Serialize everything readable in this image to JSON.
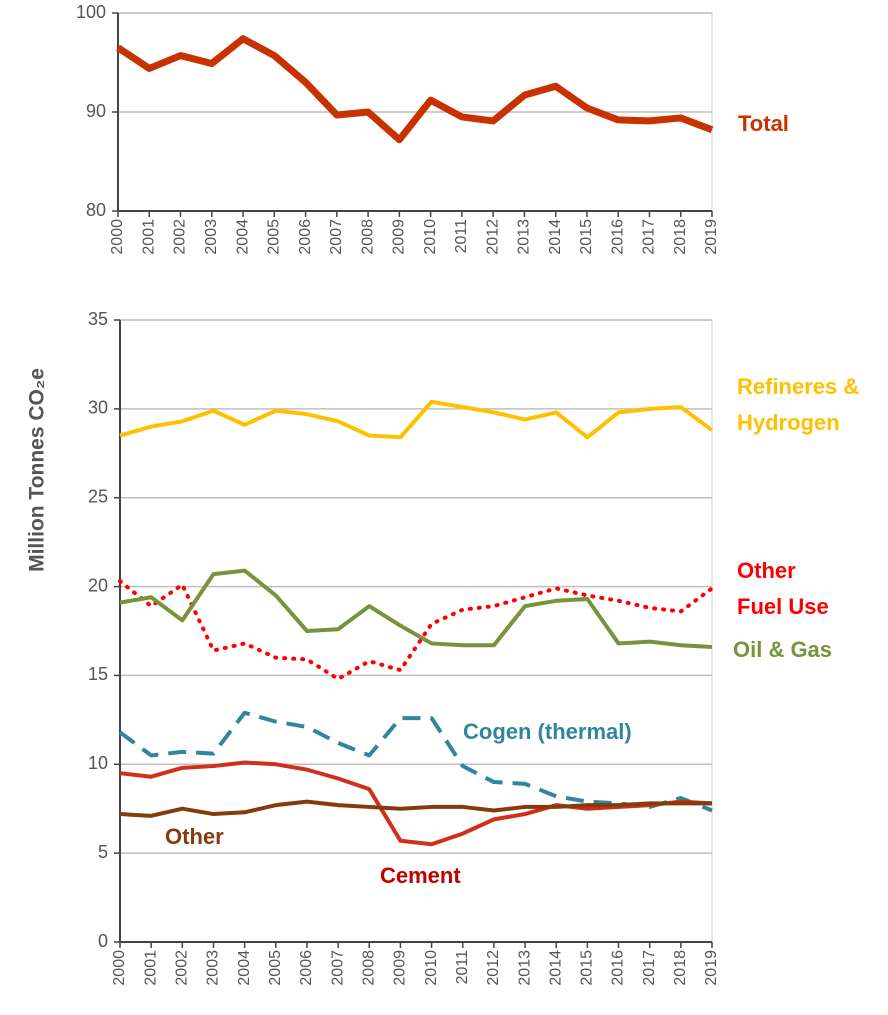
{
  "chart_data": [
    {
      "type": "line",
      "categories": [
        "2000",
        "2001",
        "2002",
        "2003",
        "2004",
        "2005",
        "2006",
        "2007",
        "2008",
        "2009",
        "2010",
        "2011",
        "2012",
        "2013",
        "2014",
        "2015",
        "2016",
        "2017",
        "2018",
        "2019"
      ],
      "series": [
        {
          "name": "Total",
          "color": "#c83200",
          "values": [
            96.5,
            94.4,
            95.7,
            94.9,
            97.4,
            95.7,
            93.0,
            89.7,
            90.0,
            87.2,
            91.2,
            89.5,
            89.1,
            91.7,
            92.6,
            90.4,
            89.2,
            89.1,
            89.4,
            88.2
          ]
        }
      ],
      "ylim": [
        80,
        100
      ],
      "yticks": [
        80,
        90,
        100
      ],
      "grid": true
    },
    {
      "type": "line",
      "y_label": "Million Tonnes CO₂e",
      "categories": [
        "2000",
        "2001",
        "2002",
        "2003",
        "2004",
        "2005",
        "2006",
        "2007",
        "2008",
        "2009",
        "2010",
        "2011",
        "2012",
        "2013",
        "2014",
        "2015",
        "2016",
        "2017",
        "2018",
        "2019"
      ],
      "series": [
        {
          "name": "Refineres & Hydrogen",
          "color": "#ffc000",
          "style": "solid",
          "values": [
            28.5,
            29.0,
            29.3,
            29.9,
            29.1,
            29.9,
            29.7,
            29.3,
            28.5,
            28.4,
            30.4,
            30.1,
            29.8,
            29.4,
            29.8,
            28.4,
            29.8,
            30.0,
            30.1,
            28.8
          ]
        },
        {
          "name": "Other Fuel Use",
          "color": "#ff0000",
          "style": "dotted",
          "values": [
            20.3,
            18.9,
            20.1,
            16.4,
            16.8,
            16.0,
            15.9,
            14.8,
            15.8,
            15.3,
            17.9,
            18.7,
            18.9,
            19.4,
            19.9,
            19.5,
            19.2,
            18.8,
            18.6,
            19.9
          ]
        },
        {
          "name": "Oil & Gas",
          "color": "#77933c",
          "style": "solid",
          "values": [
            19.1,
            19.4,
            18.1,
            20.7,
            20.9,
            19.5,
            17.5,
            17.6,
            18.9,
            17.8,
            16.8,
            16.7,
            16.7,
            18.9,
            19.2,
            19.3,
            16.8,
            16.9,
            16.7,
            16.6
          ]
        },
        {
          "name": "Cogen (thermal)",
          "color": "#31859c",
          "style": "dashed",
          "values": [
            11.8,
            10.5,
            10.7,
            10.6,
            12.9,
            12.4,
            12.1,
            11.2,
            10.5,
            12.6,
            12.6,
            9.9,
            9.0,
            8.9,
            8.2,
            7.9,
            7.8,
            7.6,
            8.1,
            7.4
          ]
        },
        {
          "name": "Cement",
          "color": "#d0301a",
          "style": "solid",
          "values": [
            9.5,
            9.3,
            9.8,
            9.9,
            10.1,
            10.0,
            9.7,
            9.2,
            8.6,
            5.7,
            5.5,
            6.1,
            6.9,
            7.2,
            7.7,
            7.5,
            7.6,
            7.7,
            7.9,
            7.8
          ]
        },
        {
          "name": "Other",
          "color": "#843c0c",
          "style": "solid",
          "values": [
            7.2,
            7.1,
            7.5,
            7.2,
            7.3,
            7.7,
            7.9,
            7.7,
            7.6,
            7.5,
            7.6,
            7.6,
            7.4,
            7.6,
            7.6,
            7.7,
            7.7,
            7.8,
            7.8,
            7.8
          ]
        }
      ],
      "ylim": [
        0,
        35
      ],
      "yticks": [
        0,
        5,
        10,
        15,
        20,
        25,
        30,
        35
      ],
      "grid": true
    }
  ]
}
